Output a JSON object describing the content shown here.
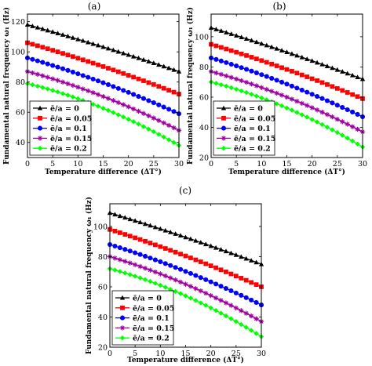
{
  "chart_data": [
    {
      "type": "line",
      "panel_label": "(a)",
      "xlabel": "Temperature difference (ΔT°)",
      "ylabel": "Fundamental natural frequency ω₁ (Hz)",
      "xlim": [
        0,
        30
      ],
      "ylim": [
        30,
        125
      ],
      "xticks": [
        0,
        5,
        10,
        15,
        20,
        25,
        30
      ],
      "yticks": [
        40,
        60,
        80,
        100,
        120
      ],
      "legend_position": "bottom-left",
      "x": [
        0,
        1,
        2,
        3,
        4,
        5,
        6,
        7,
        8,
        9,
        10,
        11,
        12,
        13,
        14,
        15,
        16,
        17,
        18,
        19,
        20,
        21,
        22,
        23,
        24,
        25,
        26,
        27,
        28,
        29,
        30
      ],
      "series": [
        {
          "name": "ē/a = 0",
          "color": "#000000",
          "marker": "triangle",
          "start": 118,
          "end": 87,
          "curve": 0.1
        },
        {
          "name": "ē/a = 0.05",
          "color": "#ff0000",
          "marker": "square",
          "start": 106,
          "end": 72,
          "curve": 0.15
        },
        {
          "name": "ē/a = 0.1",
          "color": "#0000ff",
          "marker": "circle",
          "start": 96,
          "end": 59,
          "curve": 0.22
        },
        {
          "name": "ē/a = 0.15",
          "color": "#a000a0",
          "marker": "star",
          "start": 87,
          "end": 48,
          "curve": 0.3
        },
        {
          "name": "ē/a = 0.2",
          "color": "#00ff00",
          "marker": "diamond",
          "start": 79,
          "end": 38,
          "curve": 0.4
        }
      ]
    },
    {
      "type": "line",
      "panel_label": "(b)",
      "xlabel": "Temperature difference (ΔT°)",
      "ylabel": "Fundamental natural frequency ω₁ (Hz)",
      "xlim": [
        0,
        30
      ],
      "ylim": [
        20,
        115
      ],
      "xticks": [
        0,
        5,
        10,
        15,
        20,
        25,
        30
      ],
      "yticks": [
        20,
        40,
        60,
        80,
        100
      ],
      "legend_position": "bottom-left",
      "x": [
        0,
        1,
        2,
        3,
        4,
        5,
        6,
        7,
        8,
        9,
        10,
        11,
        12,
        13,
        14,
        15,
        16,
        17,
        18,
        19,
        20,
        21,
        22,
        23,
        24,
        25,
        26,
        27,
        28,
        29,
        30
      ],
      "series": [
        {
          "name": "ē/a = 0",
          "color": "#000000",
          "marker": "triangle",
          "start": 106,
          "end": 72,
          "curve": 0.1
        },
        {
          "name": "ē/a = 0.05",
          "color": "#ff0000",
          "marker": "square",
          "start": 95,
          "end": 59,
          "curve": 0.15
        },
        {
          "name": "ē/a = 0.1",
          "color": "#0000ff",
          "marker": "circle",
          "start": 86,
          "end": 47,
          "curve": 0.22
        },
        {
          "name": "ē/a = 0.15",
          "color": "#a000a0",
          "marker": "star",
          "start": 77,
          "end": 37,
          "curve": 0.3
        },
        {
          "name": "ē/a = 0.2",
          "color": "#00ff00",
          "marker": "diamond",
          "start": 70,
          "end": 27,
          "curve": 0.4
        }
      ]
    },
    {
      "type": "line",
      "panel_label": "(c)",
      "xlabel": "Temperature difference (ΔT°)",
      "ylabel": "Fundamental natural frequency ω₁ (Hz)",
      "xlim": [
        0,
        30
      ],
      "ylim": [
        20,
        115
      ],
      "xticks": [
        0,
        5,
        10,
        15,
        20,
        25,
        30
      ],
      "yticks": [
        20,
        40,
        60,
        80,
        100
      ],
      "legend_position": "bottom-left",
      "x": [
        0,
        1,
        2,
        3,
        4,
        5,
        6,
        7,
        8,
        9,
        10,
        11,
        12,
        13,
        14,
        15,
        16,
        17,
        18,
        19,
        20,
        21,
        22,
        23,
        24,
        25,
        26,
        27,
        28,
        29,
        30
      ],
      "series": [
        {
          "name": "ē/a = 0",
          "color": "#000000",
          "marker": "triangle",
          "start": 109,
          "end": 75,
          "curve": 0.1
        },
        {
          "name": "ē/a = 0.05",
          "color": "#ff0000",
          "marker": "square",
          "start": 98,
          "end": 60,
          "curve": 0.15
        },
        {
          "name": "ē/a = 0.1",
          "color": "#0000ff",
          "marker": "circle",
          "start": 88,
          "end": 48,
          "curve": 0.22
        },
        {
          "name": "ē/a = 0.15",
          "color": "#a000a0",
          "marker": "star",
          "start": 80,
          "end": 37,
          "curve": 0.3
        },
        {
          "name": "ē/a = 0.2",
          "color": "#00ff00",
          "marker": "diamond",
          "start": 72,
          "end": 27,
          "curve": 0.4
        }
      ]
    }
  ]
}
